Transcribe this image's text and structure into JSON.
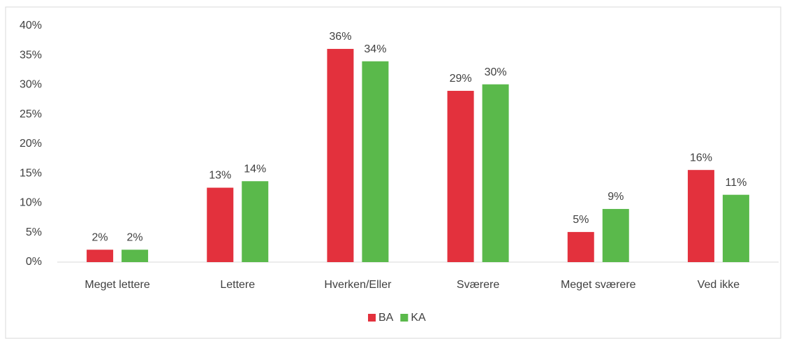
{
  "chart_data": {
    "type": "bar",
    "categories": [
      "Meget lettere",
      "Lettere",
      "Hverken/Eller",
      "Sværere",
      "Meget sværere",
      "Ved ikke"
    ],
    "series": [
      {
        "name": "BA",
        "color": "#e3313d",
        "values": [
          2.1,
          12.6,
          36.1,
          29.0,
          5.1,
          15.6
        ],
        "value_labels": [
          "2%",
          "13%",
          "36%",
          "29%",
          "5%",
          "16%"
        ]
      },
      {
        "name": "KA",
        "color": "#5ab94b",
        "values": [
          2.1,
          13.7,
          34.0,
          30.1,
          9.0,
          11.4
        ],
        "value_labels": [
          "2%",
          "14%",
          "34%",
          "30%",
          "9%",
          "11%"
        ]
      }
    ],
    "ylim": [
      0,
      40
    ],
    "yticks": [
      {
        "value": 0,
        "label": "0%"
      },
      {
        "value": 5,
        "label": "5%"
      },
      {
        "value": 10,
        "label": "10%"
      },
      {
        "value": 15,
        "label": "15%"
      },
      {
        "value": 20,
        "label": "20%"
      },
      {
        "value": 25,
        "label": "25%"
      },
      {
        "value": 30,
        "label": "30%"
      },
      {
        "value": 35,
        "label": "35%"
      },
      {
        "value": 40,
        "label": "40%"
      }
    ],
    "legend": "bottom"
  }
}
